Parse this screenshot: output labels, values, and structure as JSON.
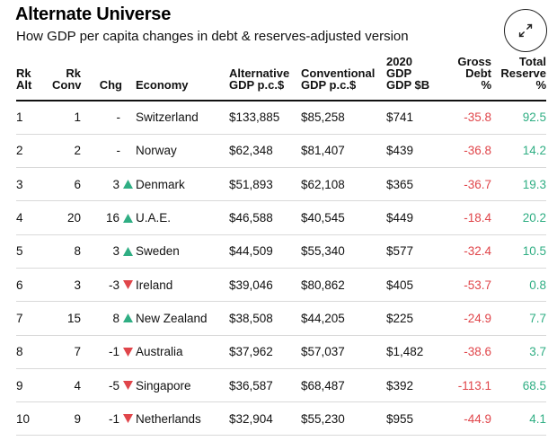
{
  "header": {
    "title": "Alternate Universe",
    "subtitle": "How GDP per capita changes in debt & reserves-adjusted version"
  },
  "columns": {
    "rk_alt": [
      "Rk",
      "Alt"
    ],
    "rk_conv": [
      "Rk",
      "Conv"
    ],
    "chg": "Chg",
    "economy": "Economy",
    "alt_gdp": [
      "Alternative",
      "GDP p.c.$"
    ],
    "conv_gdp": [
      "Conventional",
      "GDP p.c.$"
    ],
    "gdp_2020": [
      "2020",
      "GDP",
      "GDP $B"
    ],
    "gross_debt": [
      "Gross",
      "Debt",
      "%"
    ],
    "total_reserve": [
      "Total",
      "Reserve",
      "%"
    ]
  },
  "colors": {
    "negative": "#e0454a",
    "positive": "#2fae83",
    "up_arrow": "#2fae83",
    "down_arrow": "#e0454a"
  },
  "rows": [
    {
      "rk_alt": "1",
      "rk_conv": "1",
      "chg": "-",
      "dir": "none",
      "economy": "Switzerland",
      "alt_gdp": "$133,885",
      "conv_gdp": "$85,258",
      "gdp": "$741",
      "debt": "-35.8",
      "reserve": "92.5"
    },
    {
      "rk_alt": "2",
      "rk_conv": "2",
      "chg": "-",
      "dir": "none",
      "economy": "Norway",
      "alt_gdp": "$62,348",
      "conv_gdp": "$81,407",
      "gdp": "$439",
      "debt": "-36.8",
      "reserve": "14.2"
    },
    {
      "rk_alt": "3",
      "rk_conv": "6",
      "chg": "3",
      "dir": "up",
      "economy": "Denmark",
      "alt_gdp": "$51,893",
      "conv_gdp": "$62,108",
      "gdp": "$365",
      "debt": "-36.7",
      "reserve": "19.3"
    },
    {
      "rk_alt": "4",
      "rk_conv": "20",
      "chg": "16",
      "dir": "up",
      "economy": "U.A.E.",
      "alt_gdp": "$46,588",
      "conv_gdp": "$40,545",
      "gdp": "$449",
      "debt": "-18.4",
      "reserve": "20.2"
    },
    {
      "rk_alt": "5",
      "rk_conv": "8",
      "chg": "3",
      "dir": "up",
      "economy": "Sweden",
      "alt_gdp": "$44,509",
      "conv_gdp": "$55,340",
      "gdp": "$577",
      "debt": "-32.4",
      "reserve": "10.5"
    },
    {
      "rk_alt": "6",
      "rk_conv": "3",
      "chg": "-3",
      "dir": "down",
      "economy": "Ireland",
      "alt_gdp": "$39,046",
      "conv_gdp": "$80,862",
      "gdp": "$405",
      "debt": "-53.7",
      "reserve": "0.8"
    },
    {
      "rk_alt": "7",
      "rk_conv": "15",
      "chg": "8",
      "dir": "up",
      "economy": "New Zealand",
      "alt_gdp": "$38,508",
      "conv_gdp": "$44,205",
      "gdp": "$225",
      "debt": "-24.9",
      "reserve": "7.7"
    },
    {
      "rk_alt": "8",
      "rk_conv": "7",
      "chg": "-1",
      "dir": "down",
      "economy": "Australia",
      "alt_gdp": "$37,962",
      "conv_gdp": "$57,037",
      "gdp": "$1,482",
      "debt": "-38.6",
      "reserve": "3.7"
    },
    {
      "rk_alt": "9",
      "rk_conv": "4",
      "chg": "-5",
      "dir": "down",
      "economy": "Singapore",
      "alt_gdp": "$36,587",
      "conv_gdp": "$68,487",
      "gdp": "$392",
      "debt": "-113.1",
      "reserve": "68.5"
    },
    {
      "rk_alt": "10",
      "rk_conv": "9",
      "chg": "-1",
      "dir": "down",
      "economy": "Netherlands",
      "alt_gdp": "$32,904",
      "conv_gdp": "$55,230",
      "gdp": "$955",
      "debt": "-44.9",
      "reserve": "4.1"
    }
  ]
}
